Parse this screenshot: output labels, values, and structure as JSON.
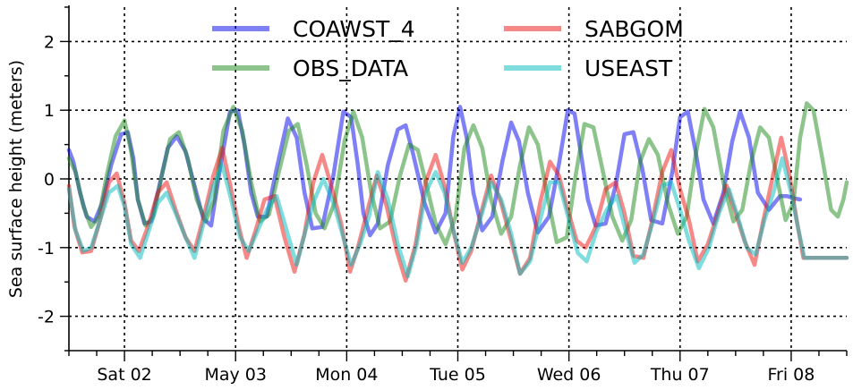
{
  "chart_data": {
    "type": "line",
    "title": "",
    "xlabel": "",
    "ylabel": "Sea surface height (meters)",
    "ylim": [
      -2.5,
      2.5
    ],
    "xlim": [
      0.5,
      7.5
    ],
    "yticks": [
      -2,
      -1,
      0,
      1,
      2
    ],
    "ytick_labels": [
      "-2",
      "-1",
      "0",
      "1",
      "2"
    ],
    "xticks": [
      1,
      2,
      3,
      4,
      5,
      6,
      7
    ],
    "xtick_labels": [
      "Sat 02",
      "May 03",
      "Mon 04",
      "Tue 05",
      "Wed 06",
      "Thu 07",
      "Fri 08"
    ],
    "grid": true,
    "legend_position": "top-center",
    "series": [
      {
        "name": "COAWST_4",
        "color": "#0000ee",
        "x": [
          0.5,
          0.54,
          0.6,
          0.66,
          0.73,
          0.8,
          0.88,
          0.97,
          1.03,
          1.08,
          1.12,
          1.18,
          1.24,
          1.3,
          1.39,
          1.47,
          1.55,
          1.63,
          1.71,
          1.78,
          1.86,
          1.95,
          2.02,
          2.08,
          2.14,
          2.2,
          2.28,
          2.37,
          2.47,
          2.55,
          2.62,
          2.69,
          2.78,
          2.88,
          2.97,
          3.04,
          3.1,
          3.15,
          3.21,
          3.28,
          3.37,
          3.46,
          3.53,
          3.6,
          3.7,
          3.8,
          3.89,
          3.96,
          4.02,
          4.08,
          4.14,
          4.22,
          4.31,
          4.4,
          4.48,
          4.55,
          4.63,
          4.72,
          4.82,
          4.91,
          4.99,
          5.05,
          5.11,
          5.17,
          5.24,
          5.33,
          5.42,
          5.5,
          5.58,
          5.66,
          5.74,
          5.84,
          5.93,
          6.0,
          6.07,
          6.14,
          6.21,
          6.3,
          6.39,
          6.47,
          6.54,
          6.62,
          6.7,
          6.8,
          6.9,
          6.96,
          7.02,
          7.08
        ],
        "values": [
          0.42,
          0.25,
          -0.2,
          -0.55,
          -0.62,
          -0.35,
          0.2,
          0.65,
          0.68,
          0.3,
          -0.3,
          -0.65,
          -0.62,
          -0.2,
          0.45,
          0.62,
          0.4,
          -0.1,
          -0.58,
          -0.68,
          0.15,
          0.98,
          1.0,
          0.5,
          -0.2,
          -0.55,
          -0.55,
          0.15,
          0.88,
          0.6,
          -0.2,
          -0.72,
          -0.7,
          0.05,
          0.98,
          0.9,
          0.2,
          -0.5,
          -0.82,
          -0.65,
          0.2,
          0.72,
          0.78,
          0.35,
          -0.35,
          -0.78,
          -0.5,
          0.62,
          1.05,
          0.6,
          -0.2,
          -0.75,
          -0.55,
          0.25,
          0.82,
          0.55,
          -0.2,
          -0.78,
          -0.55,
          0.22,
          1.0,
          0.95,
          0.35,
          -0.3,
          -0.68,
          -0.65,
          -0.1,
          0.65,
          0.68,
          0.15,
          -0.6,
          -0.65,
          0.1,
          0.9,
          0.98,
          0.4,
          -0.3,
          -0.65,
          -0.2,
          0.55,
          0.98,
          0.6,
          -0.2,
          -0.45,
          -0.25,
          -0.25,
          -0.28,
          -0.3
        ]
      },
      {
        "name": "OBS_DATA",
        "color": "#1a8a1a",
        "x": [
          0.5,
          0.56,
          0.63,
          0.7,
          0.77,
          0.84,
          0.92,
          1.0,
          1.06,
          1.12,
          1.19,
          1.26,
          1.33,
          1.41,
          1.49,
          1.57,
          1.65,
          1.73,
          1.81,
          1.89,
          1.98,
          2.06,
          2.14,
          2.22,
          2.3,
          2.39,
          2.48,
          2.56,
          2.64,
          2.72,
          2.8,
          2.89,
          2.98,
          3.06,
          3.14,
          3.22,
          3.3,
          3.39,
          3.48,
          3.56,
          3.64,
          3.72,
          3.8,
          3.89,
          3.98,
          4.06,
          4.14,
          4.22,
          4.3,
          4.39,
          4.48,
          4.56,
          4.64,
          4.72,
          4.8,
          4.89,
          4.98,
          5.06,
          5.14,
          5.22,
          5.3,
          5.39,
          5.48,
          5.56,
          5.64,
          5.72,
          5.8,
          5.89,
          5.98,
          6.06,
          6.14,
          6.22,
          6.3,
          6.39,
          6.48,
          6.56,
          6.64,
          6.72,
          6.8,
          6.88,
          6.95,
          7.02,
          7.08,
          7.14,
          7.2,
          7.28,
          7.36,
          7.42,
          7.47,
          7.5
        ],
        "values": [
          0.3,
          0.1,
          -0.4,
          -0.7,
          -0.55,
          0.05,
          0.62,
          0.85,
          0.4,
          -0.3,
          -0.68,
          -0.55,
          0.0,
          0.58,
          0.68,
          0.3,
          -0.3,
          -0.62,
          -0.3,
          0.7,
          1.05,
          0.7,
          -0.05,
          -0.62,
          -0.52,
          0.1,
          0.7,
          0.8,
          0.2,
          -0.5,
          -0.72,
          -0.35,
          0.55,
          0.98,
          0.6,
          -0.2,
          -0.72,
          -0.62,
          0.05,
          0.5,
          0.42,
          -0.1,
          -0.65,
          -0.95,
          -0.55,
          0.45,
          0.78,
          0.45,
          -0.3,
          -0.8,
          -0.55,
          0.2,
          0.75,
          0.5,
          -0.2,
          -0.92,
          -0.85,
          0.05,
          0.8,
          0.75,
          0.15,
          -0.55,
          -0.9,
          -0.6,
          0.25,
          0.58,
          0.35,
          -0.35,
          -0.8,
          -0.55,
          0.35,
          1.02,
          0.75,
          -0.05,
          -0.62,
          -0.45,
          0.25,
          0.75,
          0.6,
          -0.05,
          -0.6,
          -0.35,
          0.6,
          1.1,
          1.0,
          0.3,
          -0.45,
          -0.55,
          -0.3,
          -0.05
        ]
      },
      {
        "name": "SABGOM",
        "color": "#ee1111",
        "x": [
          0.5,
          0.55,
          0.62,
          0.7,
          0.78,
          0.86,
          0.93,
          1.0,
          1.06,
          1.13,
          1.22,
          1.3,
          1.38,
          1.46,
          1.55,
          1.63,
          1.72,
          1.8,
          1.88,
          1.96,
          2.03,
          2.1,
          2.18,
          2.26,
          2.35,
          2.44,
          2.53,
          2.62,
          2.7,
          2.78,
          2.87,
          2.95,
          3.03,
          3.1,
          3.18,
          3.27,
          3.36,
          3.45,
          3.53,
          3.62,
          3.71,
          3.8,
          3.88,
          3.96,
          4.04,
          4.12,
          4.2,
          4.3,
          4.39,
          4.48,
          4.56,
          4.65,
          4.74,
          4.83,
          4.91,
          4.99,
          5.07,
          5.15,
          5.24,
          5.33,
          5.42,
          5.5,
          5.58,
          5.67,
          5.75,
          5.84,
          5.92,
          6.0,
          6.08,
          6.16,
          6.25,
          6.33,
          6.42,
          6.5,
          6.58,
          6.67,
          6.75,
          6.83,
          6.91,
          6.98,
          7.05,
          7.11,
          7.17,
          7.25,
          7.35,
          7.45,
          7.5
        ],
        "values": [
          -0.1,
          -0.7,
          -1.07,
          -1.05,
          -0.6,
          -0.05,
          0.08,
          -0.35,
          -0.9,
          -1.05,
          -0.65,
          -0.2,
          -0.05,
          -0.45,
          -0.85,
          -1.05,
          -0.5,
          0.05,
          0.45,
          -0.15,
          -0.7,
          -1.15,
          -0.75,
          -0.3,
          -0.25,
          -0.85,
          -1.35,
          -0.8,
          -0.05,
          0.35,
          -0.15,
          -0.65,
          -1.35,
          -1.0,
          -0.5,
          0.05,
          -0.4,
          -1.05,
          -1.48,
          -0.95,
          -0.05,
          0.35,
          -0.1,
          -0.75,
          -1.32,
          -1.05,
          -0.55,
          0.05,
          -0.35,
          -0.9,
          -1.38,
          -1.15,
          -0.35,
          0.25,
          0.05,
          -0.45,
          -0.9,
          -1.0,
          -0.7,
          -0.15,
          -0.05,
          -0.5,
          -1.12,
          -1.15,
          -0.6,
          0.1,
          0.42,
          -0.15,
          -0.6,
          -1.2,
          -0.95,
          -0.55,
          -0.1,
          -0.5,
          -0.9,
          -1.25,
          -0.6,
          0.0,
          0.6,
          0.1,
          -0.6,
          -1.15,
          -1.15,
          -1.15,
          -1.15,
          -1.15,
          -1.15
        ]
      },
      {
        "name": "USEAST",
        "color": "#00bbbb",
        "x": [
          0.5,
          0.56,
          0.63,
          0.7,
          0.78,
          0.86,
          0.94,
          1.0,
          1.06,
          1.14,
          1.22,
          1.3,
          1.38,
          1.46,
          1.55,
          1.63,
          1.72,
          1.8,
          1.88,
          1.96,
          2.04,
          2.12,
          2.2,
          2.28,
          2.37,
          2.46,
          2.55,
          2.63,
          2.71,
          2.79,
          2.88,
          2.96,
          3.04,
          3.12,
          3.2,
          3.28,
          3.37,
          3.46,
          3.55,
          3.63,
          3.71,
          3.8,
          3.88,
          3.96,
          4.04,
          4.12,
          4.2,
          4.3,
          4.39,
          4.48,
          4.56,
          4.65,
          4.74,
          4.83,
          4.91,
          5.0,
          5.08,
          5.16,
          5.25,
          5.34,
          5.43,
          5.51,
          5.59,
          5.67,
          5.76,
          5.84,
          5.92,
          6.0,
          6.08,
          6.17,
          6.26,
          6.35,
          6.44,
          6.52,
          6.6,
          6.68,
          6.76,
          6.84,
          6.92,
          7.0,
          7.06,
          7.12,
          7.18,
          7.26,
          7.36,
          7.45,
          7.5
        ],
        "values": [
          -0.15,
          -0.75,
          -1.05,
          -1.0,
          -0.6,
          -0.2,
          -0.1,
          -0.4,
          -0.95,
          -1.15,
          -0.75,
          -0.35,
          -0.2,
          -0.5,
          -0.85,
          -1.15,
          -0.6,
          -0.1,
          0.2,
          -0.3,
          -0.85,
          -1.05,
          -0.75,
          -0.45,
          -0.25,
          -0.75,
          -1.25,
          -0.75,
          -0.3,
          0.0,
          -0.35,
          -0.8,
          -1.25,
          -0.95,
          -0.55,
          0.1,
          -0.3,
          -0.95,
          -1.42,
          -0.95,
          -0.2,
          0.1,
          -0.2,
          -0.75,
          -1.22,
          -1.0,
          -0.6,
          -0.05,
          -0.3,
          -0.8,
          -1.38,
          -1.2,
          -0.6,
          -0.05,
          -0.05,
          -0.6,
          -1.08,
          -1.2,
          -0.75,
          -0.45,
          -0.25,
          -0.75,
          -1.22,
          -1.1,
          -0.6,
          -0.1,
          -0.05,
          -0.45,
          -0.9,
          -1.3,
          -1.0,
          -0.5,
          -0.15,
          -0.55,
          -1.0,
          -1.1,
          -0.6,
          -0.2,
          0.3,
          -0.2,
          -0.7,
          -1.15,
          -1.15,
          -1.15,
          -1.15,
          -1.15,
          -1.15
        ]
      }
    ]
  }
}
